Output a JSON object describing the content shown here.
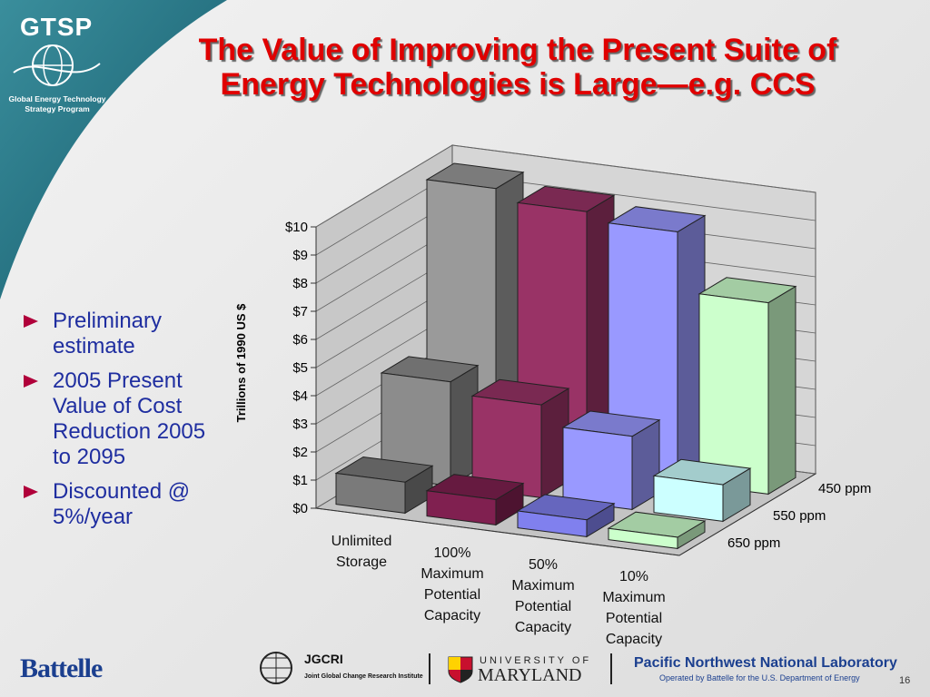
{
  "slide": {
    "logo_title": "GTSP",
    "logo_subtitle": "Global Energy Technology Strategy Program",
    "title": "The Value of Improving the Present Suite of Energy Technologies is Large—e.g. CCS",
    "bullets": [
      "Preliminary estimate",
      "2005 Present Value of Cost Reduction 2005 to 2095",
      "Discounted @ 5%/year"
    ],
    "footer": {
      "battelle": "Battelle",
      "jgcri": "JGCRI",
      "jgcri_full": "Joint Global Change Research Institute",
      "umd_top": "UNIVERSITY OF",
      "umd_name": "MARYLAND",
      "pnnl": "Pacific Northwest National Laboratory",
      "pnnl_sub": "Operated by Battelle for the U.S. Department of Energy",
      "page": "16"
    }
  },
  "chart_data": {
    "type": "bar3d",
    "y_label": "Trillions of 1990 US $",
    "categories": [
      "Unlimited Storage",
      "100% Maximum Potential Capacity",
      "50% Maximum Potential Capacity",
      "10% Maximum Potential Capacity"
    ],
    "series": [
      {
        "name": "450 ppm",
        "colors": [
          "#9a9a9a",
          "#993366",
          "#9999ff",
          "#ccffcc"
        ],
        "values": [
          9.6,
          9.2,
          8.9,
          6.8
        ]
      },
      {
        "name": "550 ppm",
        "colors": [
          "#8c8c8c",
          "#993366",
          "#9999ff",
          "#ccffff"
        ],
        "values": [
          3.7,
          3.3,
          2.6,
          1.3
        ]
      },
      {
        "name": "650 ppm",
        "colors": [
          "#7a7a7a",
          "#802050",
          "#8080ee",
          "#ccffcc"
        ],
        "values": [
          1.1,
          0.9,
          0.6,
          0.4
        ]
      }
    ],
    "ylim": [
      0,
      10
    ],
    "yticks": [
      {
        "value": 0,
        "label": "$0"
      },
      {
        "value": 1,
        "label": "$1"
      },
      {
        "value": 2,
        "label": "$2"
      },
      {
        "value": 3,
        "label": "$3"
      },
      {
        "value": 4,
        "label": "$4"
      },
      {
        "value": 5,
        "label": "$5"
      },
      {
        "value": 6,
        "label": "$6"
      },
      {
        "value": 7,
        "label": "$7"
      },
      {
        "value": 8,
        "label": "$8"
      },
      {
        "value": 9,
        "label": "$9"
      },
      {
        "value": 10,
        "label": "$10"
      }
    ],
    "grid": true
  }
}
